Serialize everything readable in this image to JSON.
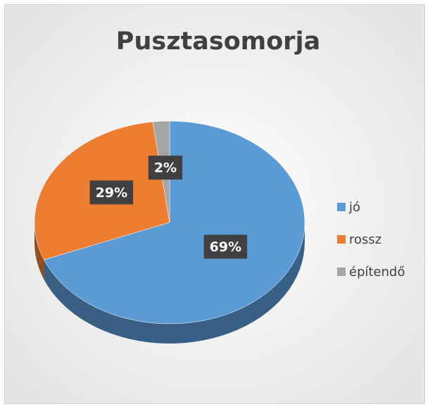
{
  "chart_data": {
    "type": "pie",
    "title": "Pusztasomorja",
    "categories": [
      "jó",
      "rossz",
      "építendő"
    ],
    "values": [
      69,
      29,
      2
    ],
    "value_labels": [
      "69%",
      "29%",
      "2%"
    ],
    "colors": [
      "#5b9bd5",
      "#ed7d31",
      "#a5a5a5"
    ],
    "legend": "right"
  }
}
